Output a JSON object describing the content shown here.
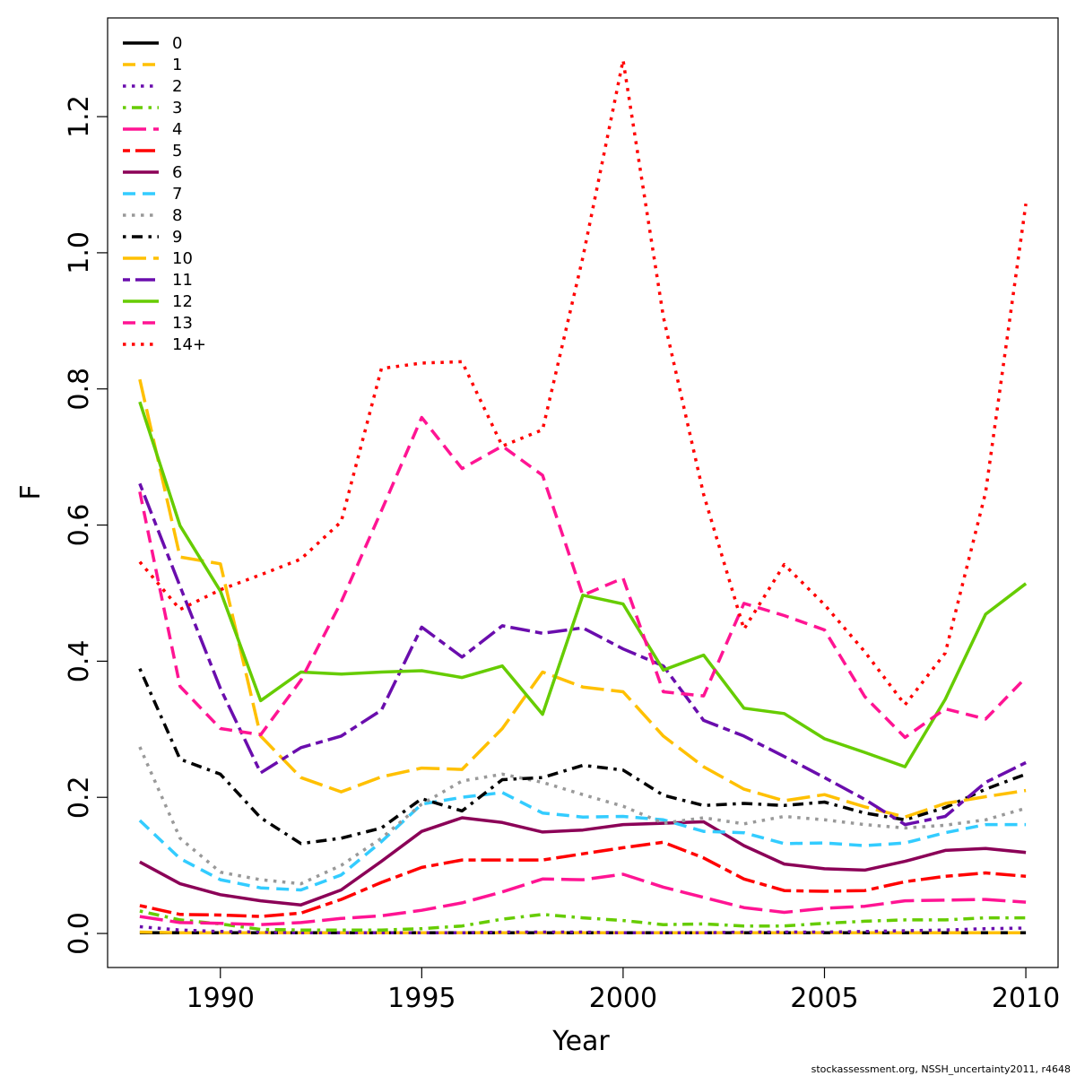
{
  "chart_data": {
    "type": "line",
    "title": "",
    "xlabel": "Year",
    "ylabel": "F",
    "xlim": [
      1987.2,
      2010.8
    ],
    "ylim": [
      -0.05,
      1.345
    ],
    "x_ticks": [
      1990,
      1995,
      2000,
      2005,
      2010
    ],
    "x_tick_labels": [
      "1990",
      "1995",
      "2000",
      "2005",
      "2010"
    ],
    "y_ticks": [
      0.0,
      0.2,
      0.4,
      0.6,
      0.8,
      1.0,
      1.2
    ],
    "y_tick_labels": [
      "0.0",
      "0.2",
      "0.4",
      "0.6",
      "0.8",
      "1.0",
      "1.2"
    ],
    "grid": false,
    "legend_position": "top-left",
    "x": [
      1988,
      1989,
      1990,
      1991,
      1992,
      1993,
      1994,
      1995,
      1996,
      1997,
      1998,
      1999,
      2000,
      2001,
      2002,
      2003,
      2004,
      2005,
      2006,
      2007,
      2008,
      2009,
      2010
    ],
    "series": [
      {
        "name": "0",
        "color": "#000000",
        "dash": "solid",
        "values": [
          0.001,
          0.001,
          0.001,
          0.001,
          0.001,
          0.001,
          0.001,
          0.001,
          0.001,
          0.001,
          0.001,
          0.001,
          0.001,
          0.001,
          0.001,
          0.001,
          0.001,
          0.001,
          0.001,
          0.001,
          0.001,
          0.001,
          0.001
        ]
      },
      {
        "name": "1",
        "color": "#FFC000",
        "dash": "dashed",
        "values": [
          0.002,
          0.001,
          0.001,
          0.001,
          0.001,
          0.001,
          0.001,
          0.001,
          0.001,
          0.001,
          0.001,
          0.001,
          0.001,
          0.001,
          0.001,
          0.001,
          0.001,
          0.001,
          0.001,
          0.001,
          0.001,
          0.001,
          0.001
        ]
      },
      {
        "name": "2",
        "color": "#6A0DAD",
        "dash": "dotted",
        "values": [
          0.01,
          0.005,
          0.003,
          0.002,
          0.001,
          0.001,
          0.001,
          0.001,
          0.001,
          0.002,
          0.002,
          0.002,
          0.001,
          0.001,
          0.001,
          0.002,
          0.002,
          0.002,
          0.003,
          0.004,
          0.005,
          0.007,
          0.008
        ]
      },
      {
        "name": "3",
        "color": "#66CC00",
        "dash": "dotdash",
        "values": [
          0.033,
          0.02,
          0.014,
          0.006,
          0.005,
          0.005,
          0.005,
          0.007,
          0.011,
          0.021,
          0.028,
          0.023,
          0.019,
          0.013,
          0.014,
          0.011,
          0.011,
          0.015,
          0.018,
          0.02,
          0.02,
          0.023,
          0.023
        ]
      },
      {
        "name": "4",
        "color": "#FF1493",
        "dash": "longdash",
        "values": [
          0.025,
          0.016,
          0.015,
          0.013,
          0.016,
          0.022,
          0.026,
          0.034,
          0.045,
          0.061,
          0.08,
          0.079,
          0.087,
          0.068,
          0.053,
          0.038,
          0.031,
          0.037,
          0.04,
          0.048,
          0.049,
          0.05,
          0.046
        ]
      },
      {
        "name": "5",
        "color": "#FF0000",
        "dash": "twodash",
        "values": [
          0.041,
          0.028,
          0.027,
          0.025,
          0.03,
          0.05,
          0.075,
          0.097,
          0.108,
          0.108,
          0.108,
          0.117,
          0.126,
          0.134,
          0.111,
          0.08,
          0.063,
          0.062,
          0.063,
          0.076,
          0.084,
          0.089,
          0.084
        ]
      },
      {
        "name": "6",
        "color": "#8B0057",
        "dash": "solid",
        "values": [
          0.105,
          0.073,
          0.057,
          0.048,
          0.042,
          0.064,
          0.106,
          0.15,
          0.17,
          0.163,
          0.149,
          0.152,
          0.16,
          0.162,
          0.164,
          0.129,
          0.102,
          0.095,
          0.093,
          0.106,
          0.122,
          0.125,
          0.119
        ]
      },
      {
        "name": "7",
        "color": "#33CCFF",
        "dash": "dashed",
        "values": [
          0.166,
          0.11,
          0.079,
          0.067,
          0.064,
          0.086,
          0.135,
          0.19,
          0.2,
          0.207,
          0.177,
          0.171,
          0.172,
          0.167,
          0.15,
          0.148,
          0.132,
          0.133,
          0.129,
          0.133,
          0.148,
          0.16,
          0.16
        ]
      },
      {
        "name": "8",
        "color": "#999999",
        "dash": "dotted",
        "values": [
          0.274,
          0.14,
          0.09,
          0.079,
          0.073,
          0.1,
          0.14,
          0.19,
          0.224,
          0.234,
          0.222,
          0.204,
          0.187,
          0.162,
          0.17,
          0.161,
          0.172,
          0.167,
          0.16,
          0.155,
          0.159,
          0.167,
          0.184
        ]
      },
      {
        "name": "9",
        "color": "#000000",
        "dash": "dotdash",
        "values": [
          0.389,
          0.256,
          0.234,
          0.17,
          0.132,
          0.14,
          0.155,
          0.198,
          0.18,
          0.226,
          0.229,
          0.247,
          0.24,
          0.203,
          0.188,
          0.191,
          0.188,
          0.193,
          0.177,
          0.167,
          0.185,
          0.212,
          0.234
        ]
      },
      {
        "name": "10",
        "color": "#FFC000",
        "dash": "longdash",
        "values": [
          0.814,
          0.553,
          0.543,
          0.29,
          0.229,
          0.208,
          0.23,
          0.243,
          0.241,
          0.301,
          0.384,
          0.362,
          0.355,
          0.29,
          0.245,
          0.212,
          0.195,
          0.204,
          0.186,
          0.171,
          0.191,
          0.201,
          0.21
        ]
      },
      {
        "name": "11",
        "color": "#6A0DAD",
        "dash": "twodash",
        "values": [
          0.661,
          0.51,
          0.36,
          0.236,
          0.273,
          0.29,
          0.328,
          0.45,
          0.406,
          0.452,
          0.441,
          0.449,
          0.418,
          0.393,
          0.313,
          0.29,
          0.26,
          0.229,
          0.197,
          0.16,
          0.172,
          0.222,
          0.251
        ]
      },
      {
        "name": "12",
        "color": "#66CC00",
        "dash": "solid",
        "values": [
          0.781,
          0.599,
          0.503,
          0.342,
          0.384,
          0.381,
          0.384,
          0.386,
          0.376,
          0.393,
          0.322,
          0.497,
          0.484,
          0.387,
          0.409,
          0.331,
          0.323,
          0.286,
          0.266,
          0.245,
          0.344,
          0.469,
          0.514
        ]
      },
      {
        "name": "13",
        "color": "#FF1493",
        "dash": "dashed",
        "values": [
          0.649,
          0.363,
          0.301,
          0.292,
          0.372,
          0.487,
          0.621,
          0.758,
          0.683,
          0.716,
          0.673,
          0.497,
          0.522,
          0.355,
          0.349,
          0.485,
          0.467,
          0.446,
          0.348,
          0.288,
          0.33,
          0.315,
          0.376
        ]
      },
      {
        "name": "14+",
        "color": "#FF0000",
        "dash": "dotted",
        "values": [
          0.546,
          0.476,
          0.505,
          0.527,
          0.55,
          0.605,
          0.83,
          0.838,
          0.84,
          0.716,
          0.74,
          0.993,
          1.283,
          0.906,
          0.645,
          0.447,
          0.542,
          0.483,
          0.414,
          0.336,
          0.412,
          0.648,
          1.072
        ]
      }
    ]
  },
  "footer": "stockassessment.org, NSSH_uncertainty2011, r4648"
}
